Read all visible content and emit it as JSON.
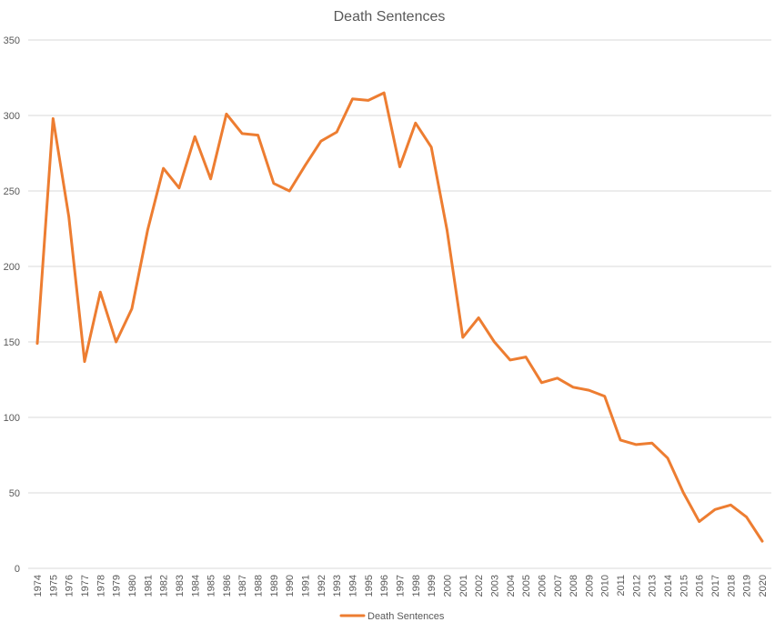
{
  "chart_data": {
    "type": "line",
    "title": "Death Sentences",
    "xlabel": "",
    "ylabel": "",
    "ylim": [
      0,
      350
    ],
    "y_ticks": [
      0,
      50,
      100,
      150,
      200,
      250,
      300,
      350
    ],
    "grid": "horizontal",
    "legend_position": "bottom",
    "categories": [
      "1974",
      "1975",
      "1976",
      "1977",
      "1978",
      "1979",
      "1980",
      "1981",
      "1982",
      "1983",
      "1984",
      "1985",
      "1986",
      "1987",
      "1988",
      "1989",
      "1990",
      "1991",
      "1992",
      "1993",
      "1994",
      "1995",
      "1996",
      "1997",
      "1998",
      "1999",
      "2000",
      "2001",
      "2002",
      "2003",
      "2004",
      "2005",
      "2006",
      "2007",
      "2008",
      "2009",
      "2010",
      "2011",
      "2012",
      "2013",
      "2014",
      "2015",
      "2016",
      "2017",
      "2018",
      "2019",
      "2020"
    ],
    "series": [
      {
        "name": "Death Sentences",
        "color": "#ed7d31",
        "values": [
          149,
          298,
          233,
          137,
          183,
          150,
          172,
          224,
          265,
          252,
          286,
          258,
          301,
          288,
          287,
          255,
          250,
          267,
          283,
          289,
          311,
          310,
          315,
          266,
          295,
          279,
          224,
          153,
          166,
          150,
          138,
          140,
          123,
          126,
          120,
          118,
          114,
          85,
          82,
          83,
          73,
          50,
          31,
          39,
          42,
          34,
          18
        ]
      }
    ]
  }
}
